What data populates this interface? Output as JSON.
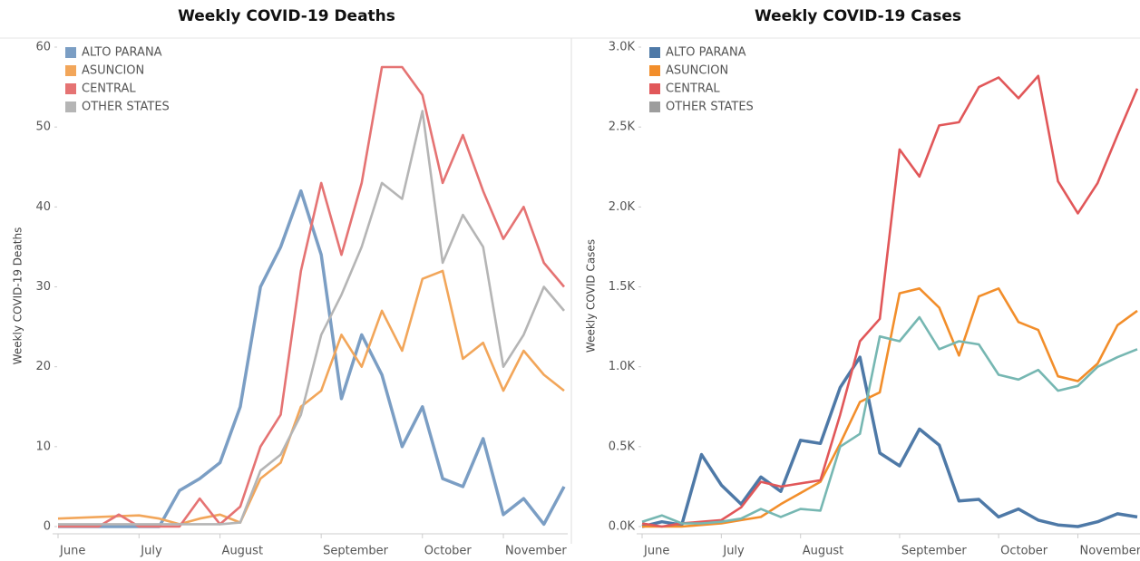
{
  "chart_data": [
    {
      "type": "line",
      "title": "Weekly COVID-19 Deaths",
      "y_label": "Weekly COVID-19 Deaths",
      "categories": [
        "June",
        null,
        null,
        null,
        "July",
        null,
        null,
        null,
        "August",
        null,
        null,
        null,
        null,
        "September",
        null,
        null,
        null,
        null,
        "October",
        null,
        null,
        null,
        "November",
        null,
        null,
        null
      ],
      "ylim": [
        0,
        60
      ],
      "yticks": [
        0,
        10,
        20,
        30,
        40,
        50,
        60
      ],
      "grid": false,
      "legend": "top-left",
      "series": [
        {
          "name": "ALTO PARANA",
          "color": "#7b9ec4",
          "values": [
            0,
            0,
            0,
            0,
            0,
            0,
            4.5,
            6,
            8,
            15,
            30,
            35,
            42,
            34,
            16,
            24,
            19,
            10,
            15,
            6,
            5,
            11,
            1.5,
            3.5,
            0.3,
            5
          ]
        },
        {
          "name": "ASUNCION",
          "color": "#f2a65a",
          "values": [
            1,
            1.1,
            1.2,
            1.3,
            1.4,
            1,
            0.3,
            1,
            1.5,
            0.5,
            6,
            8,
            15,
            17,
            24,
            20,
            27,
            22,
            31,
            32,
            21,
            23,
            17,
            22,
            19,
            17
          ]
        },
        {
          "name": "CENTRAL",
          "color": "#e57373",
          "values": [
            0,
            0,
            0,
            1.5,
            0,
            0,
            0,
            3.5,
            0.3,
            2.5,
            10,
            14,
            32,
            43,
            34,
            43,
            57.5,
            57.5,
            54,
            43,
            49,
            42,
            36,
            40,
            33,
            30
          ]
        },
        {
          "name": "OTHER STATES",
          "color": "#b5b5b5",
          "values": [
            0.3,
            0.3,
            0.3,
            0.3,
            0.3,
            0.3,
            0.3,
            0.3,
            0.3,
            0.5,
            7,
            9,
            14,
            24,
            29,
            35,
            43,
            41,
            52,
            33,
            39,
            35,
            20,
            24,
            30,
            27
          ]
        }
      ]
    },
    {
      "type": "line",
      "title": "Weekly COVID-19 Cases",
      "y_label": "Weekly COVID Cases",
      "categories": [
        "June",
        null,
        null,
        null,
        "July",
        null,
        null,
        null,
        "August",
        null,
        null,
        null,
        null,
        "September",
        null,
        null,
        null,
        null,
        "October",
        null,
        null,
        null,
        "November",
        null,
        null,
        null
      ],
      "ylim": [
        0,
        3000
      ],
      "yticks": [
        {
          "value": 0,
          "label": "0.0K"
        },
        {
          "value": 500,
          "label": "0.5K"
        },
        {
          "value": 1000,
          "label": "1.0K"
        },
        {
          "value": 1500,
          "label": "1.5K"
        },
        {
          "value": 2000,
          "label": "2.0K"
        },
        {
          "value": 2500,
          "label": "2.5K"
        },
        {
          "value": 3000,
          "label": "3.0K"
        }
      ],
      "grid": false,
      "legend": "top-left",
      "series": [
        {
          "name": "ALTO PARANA",
          "color": "#4e79a7",
          "values": [
            0,
            30,
            10,
            450,
            260,
            140,
            310,
            220,
            540,
            520,
            870,
            1060,
            460,
            380,
            610,
            510,
            160,
            170,
            60,
            110,
            40,
            10,
            0,
            30,
            80,
            60
          ]
        },
        {
          "name": "ASUNCION",
          "color": "#f28e2b",
          "values": [
            0,
            0,
            0,
            10,
            20,
            40,
            60,
            140,
            210,
            280,
            520,
            780,
            840,
            1460,
            1490,
            1370,
            1070,
            1440,
            1490,
            1280,
            1230,
            940,
            910,
            1020,
            1260,
            1350
          ]
        },
        {
          "name": "CENTRAL",
          "color": "#e15759",
          "values": [
            20,
            0,
            20,
            30,
            40,
            120,
            280,
            250,
            270,
            290,
            700,
            1160,
            1300,
            2360,
            2190,
            2510,
            2530,
            2750,
            2810,
            2680,
            2820,
            2160,
            1960,
            2150,
            2450,
            2740
          ]
        },
        {
          "name": "OTHER STATES",
          "color": "#9d9d9d",
          "line_color": "#76b7b2",
          "values": [
            30,
            70,
            20,
            20,
            30,
            50,
            110,
            60,
            110,
            100,
            500,
            580,
            1190,
            1160,
            1310,
            1110,
            1160,
            1140,
            950,
            920,
            980,
            850,
            880,
            1000,
            1060,
            1110
          ]
        }
      ]
    }
  ]
}
